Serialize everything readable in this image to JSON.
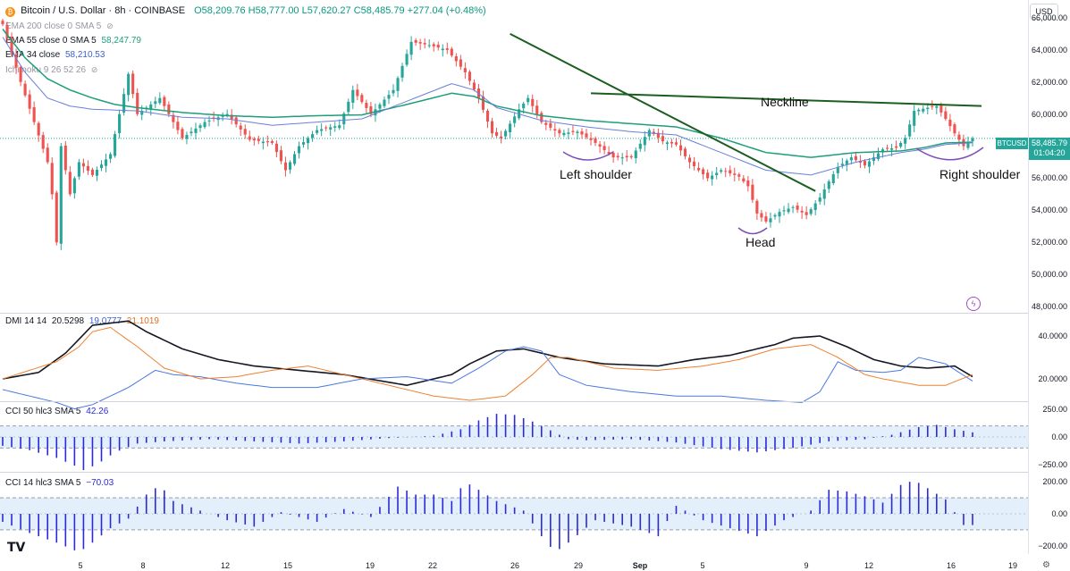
{
  "header": {
    "title": "Bitcoin / U.S. Dollar · 8h · COINBASE",
    "ohlc": "O58,209.76 H58,777.00 L57,620.27 C58,485.79 +277.04 (+0.48%)"
  },
  "legends": {
    "ema200": "EMA 200 close 0 SMA 5",
    "ema55_label": "EMA 55 close 0 SMA 5",
    "ema55_value": "58,247.79",
    "ema34_label": "EMA 34 close",
    "ema34_value": "58,210.53",
    "ichimoku": "Ichimoku 9 26 52 26",
    "dmi_label": "DMI 14 14",
    "dmi_adx": "20.5298",
    "dmi_plus": "19.0777",
    "dmi_minus": "21.1019",
    "cci50_label": "CCI 50 hlc3 SMA 5",
    "cci50_value": "42.26",
    "cci14_label": "CCI 14 hlc3 SMA 5",
    "cci14_value": "−70.03"
  },
  "annotations": {
    "neckline": "Neckline",
    "left_shoulder": "Left shoulder",
    "head": "Head",
    "right_shoulder": "Right shoulder"
  },
  "price_tag": {
    "symbol": "BTCUSD",
    "price": "58,485.79",
    "timer": "01:04:20"
  },
  "currency": "USD",
  "colors": {
    "up": "#26a69a",
    "down": "#ef5350",
    "ema55": "#1e9e7a",
    "ema34": "#6a7fdb",
    "trend": "#1b5e20",
    "adx": "#131722",
    "di_plus": "#4a78e0",
    "di_minus": "#f08030",
    "cci": "#2a2ad8",
    "brand_logo": "#f7931a"
  },
  "chart_data": [
    {
      "type": "candlestick",
      "name": "price",
      "y_ticks": [
        "66,000.00",
        "64,000.00",
        "62,000.00",
        "60,000.00",
        "58,000.00",
        "56,000.00",
        "54,000.00",
        "52,000.00",
        "50,000.00",
        "48,000.00"
      ],
      "x_ticks": [
        "5",
        "8",
        "12",
        "15",
        "19",
        "22",
        "26",
        "29",
        "Sep",
        "5",
        "9",
        "12",
        "16",
        "19"
      ],
      "ylim": [
        47500,
        66500
      ],
      "anchors": [
        [
          0,
          65600
        ],
        [
          4,
          62000
        ],
        [
          7,
          59500
        ],
        [
          10,
          57000
        ],
        [
          11,
          55000
        ],
        [
          12,
          52000
        ],
        [
          13,
          58000
        ],
        [
          15,
          55000
        ],
        [
          17,
          57000
        ],
        [
          20,
          56200
        ],
        [
          24,
          57500
        ],
        [
          26,
          60000
        ],
        [
          28,
          62500
        ],
        [
          30,
          60000
        ],
        [
          35,
          61000
        ],
        [
          40,
          58500
        ],
        [
          45,
          59500
        ],
        [
          50,
          60000
        ],
        [
          55,
          58400
        ],
        [
          60,
          58200
        ],
        [
          63,
          56500
        ],
        [
          66,
          58000
        ],
        [
          70,
          59000
        ],
        [
          75,
          59300
        ],
        [
          78,
          61500
        ],
        [
          82,
          60000
        ],
        [
          87,
          61500
        ],
        [
          91,
          64500
        ],
        [
          95,
          64300
        ],
        [
          99,
          64000
        ],
        [
          103,
          62600
        ],
        [
          106,
          61000
        ],
        [
          109,
          58800
        ],
        [
          111,
          58500
        ],
        [
          115,
          60300
        ],
        [
          117,
          61000
        ],
        [
          120,
          59500
        ],
        [
          124,
          58800
        ],
        [
          128,
          58900
        ],
        [
          132,
          58200
        ],
        [
          136,
          57300
        ],
        [
          140,
          57300
        ],
        [
          144,
          59000
        ],
        [
          147,
          58300
        ],
        [
          150,
          58100
        ],
        [
          153,
          57000
        ],
        [
          157,
          56000
        ],
        [
          160,
          56500
        ],
        [
          164,
          56100
        ],
        [
          166,
          55500
        ],
        [
          168,
          53800
        ],
        [
          170,
          53300
        ],
        [
          173,
          53900
        ],
        [
          176,
          54200
        ],
        [
          179,
          53700
        ],
        [
          182,
          54800
        ],
        [
          184,
          55800
        ],
        [
          186,
          56700
        ],
        [
          189,
          57300
        ],
        [
          192,
          56800
        ],
        [
          196,
          57800
        ],
        [
          199,
          57900
        ],
        [
          201,
          58500
        ],
        [
          203,
          60200
        ],
        [
          206,
          60400
        ],
        [
          208,
          60500
        ],
        [
          210,
          59700
        ],
        [
          212,
          58800
        ],
        [
          214,
          58000
        ],
        [
          216,
          58486
        ]
      ],
      "ema55_anchors": [
        [
          0,
          65300
        ],
        [
          5,
          63500
        ],
        [
          10,
          62200
        ],
        [
          15,
          61500
        ],
        [
          20,
          61000
        ],
        [
          25,
          60600
        ],
        [
          30,
          60400
        ],
        [
          40,
          60100
        ],
        [
          50,
          59900
        ],
        [
          60,
          59800
        ],
        [
          70,
          59900
        ],
        [
          80,
          59950
        ],
        [
          90,
          60600
        ],
        [
          100,
          61300
        ],
        [
          105,
          61100
        ],
        [
          110,
          60500
        ],
        [
          120,
          59900
        ],
        [
          130,
          59600
        ],
        [
          140,
          59400
        ],
        [
          150,
          59200
        ],
        [
          160,
          58500
        ],
        [
          170,
          57600
        ],
        [
          180,
          57300
        ],
        [
          190,
          57600
        ],
        [
          200,
          57700
        ],
        [
          205,
          57900
        ],
        [
          210,
          58200
        ],
        [
          216,
          58248
        ]
      ],
      "ema34_anchors": [
        [
          0,
          64800
        ],
        [
          5,
          62600
        ],
        [
          10,
          61000
        ],
        [
          15,
          60500
        ],
        [
          20,
          60300
        ],
        [
          30,
          60200
        ],
        [
          40,
          59800
        ],
        [
          50,
          59700
        ],
        [
          60,
          59300
        ],
        [
          70,
          59500
        ],
        [
          80,
          59700
        ],
        [
          90,
          60800
        ],
        [
          100,
          61900
        ],
        [
          105,
          61500
        ],
        [
          110,
          60400
        ],
        [
          120,
          59600
        ],
        [
          130,
          59200
        ],
        [
          140,
          58900
        ],
        [
          150,
          58700
        ],
        [
          160,
          57600
        ],
        [
          170,
          56500
        ],
        [
          180,
          56200
        ],
        [
          190,
          57000
        ],
        [
          200,
          57600
        ],
        [
          205,
          57800
        ],
        [
          210,
          58100
        ],
        [
          216,
          58211
        ]
      ],
      "neckline": [
        [
          131,
          61300
        ],
        [
          218,
          60500
        ]
      ],
      "trendline": [
        [
          113,
          65000
        ],
        [
          181,
          55200
        ]
      ]
    },
    {
      "type": "line",
      "name": "DMI",
      "ylim": [
        10,
        50
      ],
      "y_ticks": [
        "40.0000",
        "20.0000"
      ],
      "series": [
        {
          "name": "ADX",
          "anchors": [
            [
              0,
              20
            ],
            [
              8,
              23
            ],
            [
              14,
              32
            ],
            [
              20,
              45
            ],
            [
              28,
              47
            ],
            [
              32,
              42
            ],
            [
              40,
              34
            ],
            [
              48,
              29
            ],
            [
              56,
              26
            ],
            [
              66,
              24
            ],
            [
              76,
              22
            ],
            [
              90,
              17
            ],
            [
              100,
              22
            ],
            [
              104,
              27
            ],
            [
              110,
              33
            ],
            [
              116,
              34
            ],
            [
              124,
              30
            ],
            [
              134,
              27
            ],
            [
              146,
              26
            ],
            [
              154,
              29
            ],
            [
              162,
              31
            ],
            [
              172,
              36
            ],
            [
              176,
              39
            ],
            [
              182,
              40
            ],
            [
              188,
              35
            ],
            [
              194,
              29
            ],
            [
              200,
              26
            ],
            [
              206,
              25
            ],
            [
              212,
              26
            ],
            [
              216,
              21
            ]
          ]
        },
        {
          "name": "+DI",
          "anchors": [
            [
              0,
              15
            ],
            [
              6,
              12
            ],
            [
              12,
              9
            ],
            [
              16,
              6
            ],
            [
              20,
              8
            ],
            [
              28,
              16
            ],
            [
              34,
              24
            ],
            [
              38,
              22
            ],
            [
              44,
              21
            ],
            [
              52,
              18
            ],
            [
              60,
              16
            ],
            [
              70,
              16
            ],
            [
              80,
              20
            ],
            [
              90,
              21
            ],
            [
              100,
              18
            ],
            [
              106,
              25
            ],
            [
              112,
              33
            ],
            [
              116,
              35
            ],
            [
              120,
              33
            ],
            [
              124,
              22
            ],
            [
              130,
              17
            ],
            [
              140,
              14
            ],
            [
              150,
              12
            ],
            [
              160,
              12
            ],
            [
              170,
              10
            ],
            [
              178,
              9
            ],
            [
              182,
              14
            ],
            [
              186,
              28
            ],
            [
              190,
              24
            ],
            [
              196,
              23
            ],
            [
              200,
              24
            ],
            [
              204,
              30
            ],
            [
              210,
              27
            ],
            [
              216,
              19
            ]
          ]
        },
        {
          "name": "−DI",
          "anchors": [
            [
              0,
              20
            ],
            [
              6,
              24
            ],
            [
              12,
              28
            ],
            [
              17,
              35
            ],
            [
              20,
              42
            ],
            [
              24,
              44
            ],
            [
              30,
              35
            ],
            [
              36,
              25
            ],
            [
              44,
              20
            ],
            [
              52,
              21
            ],
            [
              60,
              24
            ],
            [
              68,
              26
            ],
            [
              76,
              22
            ],
            [
              86,
              17
            ],
            [
              96,
              12
            ],
            [
              104,
              10
            ],
            [
              112,
              12
            ],
            [
              118,
              22
            ],
            [
              122,
              30
            ],
            [
              126,
              30
            ],
            [
              136,
              25
            ],
            [
              146,
              24
            ],
            [
              156,
              26
            ],
            [
              164,
              29
            ],
            [
              172,
              34
            ],
            [
              180,
              36
            ],
            [
              186,
              30
            ],
            [
              192,
              22
            ],
            [
              196,
              20
            ],
            [
              204,
              17
            ],
            [
              210,
              17
            ],
            [
              216,
              22
            ]
          ]
        }
      ]
    },
    {
      "type": "bar",
      "name": "CCI 50",
      "ylim": [
        -300,
        300
      ],
      "y_ticks": [
        "250.00",
        "0.00",
        "−250.00"
      ],
      "bands": [
        100,
        -100
      ],
      "anchors": [
        [
          0,
          -80
        ],
        [
          6,
          -120
        ],
        [
          12,
          -190
        ],
        [
          16,
          -260
        ],
        [
          18,
          -300
        ],
        [
          21,
          -250
        ],
        [
          25,
          -140
        ],
        [
          30,
          -60
        ],
        [
          36,
          -40
        ],
        [
          46,
          -20
        ],
        [
          56,
          -40
        ],
        [
          66,
          -60
        ],
        [
          76,
          -40
        ],
        [
          86,
          -10
        ],
        [
          96,
          10
        ],
        [
          102,
          70
        ],
        [
          106,
          150
        ],
        [
          110,
          210
        ],
        [
          114,
          200
        ],
        [
          118,
          140
        ],
        [
          122,
          60
        ],
        [
          126,
          -20
        ],
        [
          130,
          -30
        ],
        [
          140,
          -20
        ],
        [
          150,
          -50
        ],
        [
          160,
          -110
        ],
        [
          168,
          -140
        ],
        [
          176,
          -100
        ],
        [
          184,
          -40
        ],
        [
          192,
          -20
        ],
        [
          198,
          20
        ],
        [
          204,
          90
        ],
        [
          208,
          110
        ],
        [
          212,
          70
        ],
        [
          216,
          42
        ]
      ]
    },
    {
      "type": "bar",
      "name": "CCI 14",
      "ylim": [
        -240,
        240
      ],
      "y_ticks": [
        "200.00",
        "0.00",
        "−200.00"
      ],
      "bands": [
        100,
        -100
      ],
      "anchors": [
        [
          0,
          -50
        ],
        [
          6,
          -120
        ],
        [
          12,
          -180
        ],
        [
          17,
          -240
        ],
        [
          20,
          -180
        ],
        [
          24,
          -90
        ],
        [
          28,
          -30
        ],
        [
          32,
          120
        ],
        [
          35,
          180
        ],
        [
          38,
          80
        ],
        [
          44,
          20
        ],
        [
          50,
          -40
        ],
        [
          56,
          -80
        ],
        [
          62,
          10
        ],
        [
          70,
          -50
        ],
        [
          76,
          30
        ],
        [
          82,
          -20
        ],
        [
          88,
          170
        ],
        [
          92,
          120
        ],
        [
          96,
          120
        ],
        [
          100,
          80
        ],
        [
          103,
          200
        ],
        [
          106,
          150
        ],
        [
          110,
          80
        ],
        [
          116,
          20
        ],
        [
          120,
          -140
        ],
        [
          123,
          -240
        ],
        [
          126,
          -180
        ],
        [
          132,
          -40
        ],
        [
          140,
          -80
        ],
        [
          146,
          -140
        ],
        [
          150,
          50
        ],
        [
          156,
          -40
        ],
        [
          162,
          -90
        ],
        [
          168,
          -140
        ],
        [
          174,
          -40
        ],
        [
          180,
          20
        ],
        [
          184,
          150
        ],
        [
          188,
          140
        ],
        [
          192,
          110
        ],
        [
          196,
          70
        ],
        [
          200,
          180
        ],
        [
          203,
          210
        ],
        [
          206,
          160
        ],
        [
          210,
          90
        ],
        [
          214,
          -70
        ],
        [
          216,
          -70
        ]
      ]
    }
  ]
}
